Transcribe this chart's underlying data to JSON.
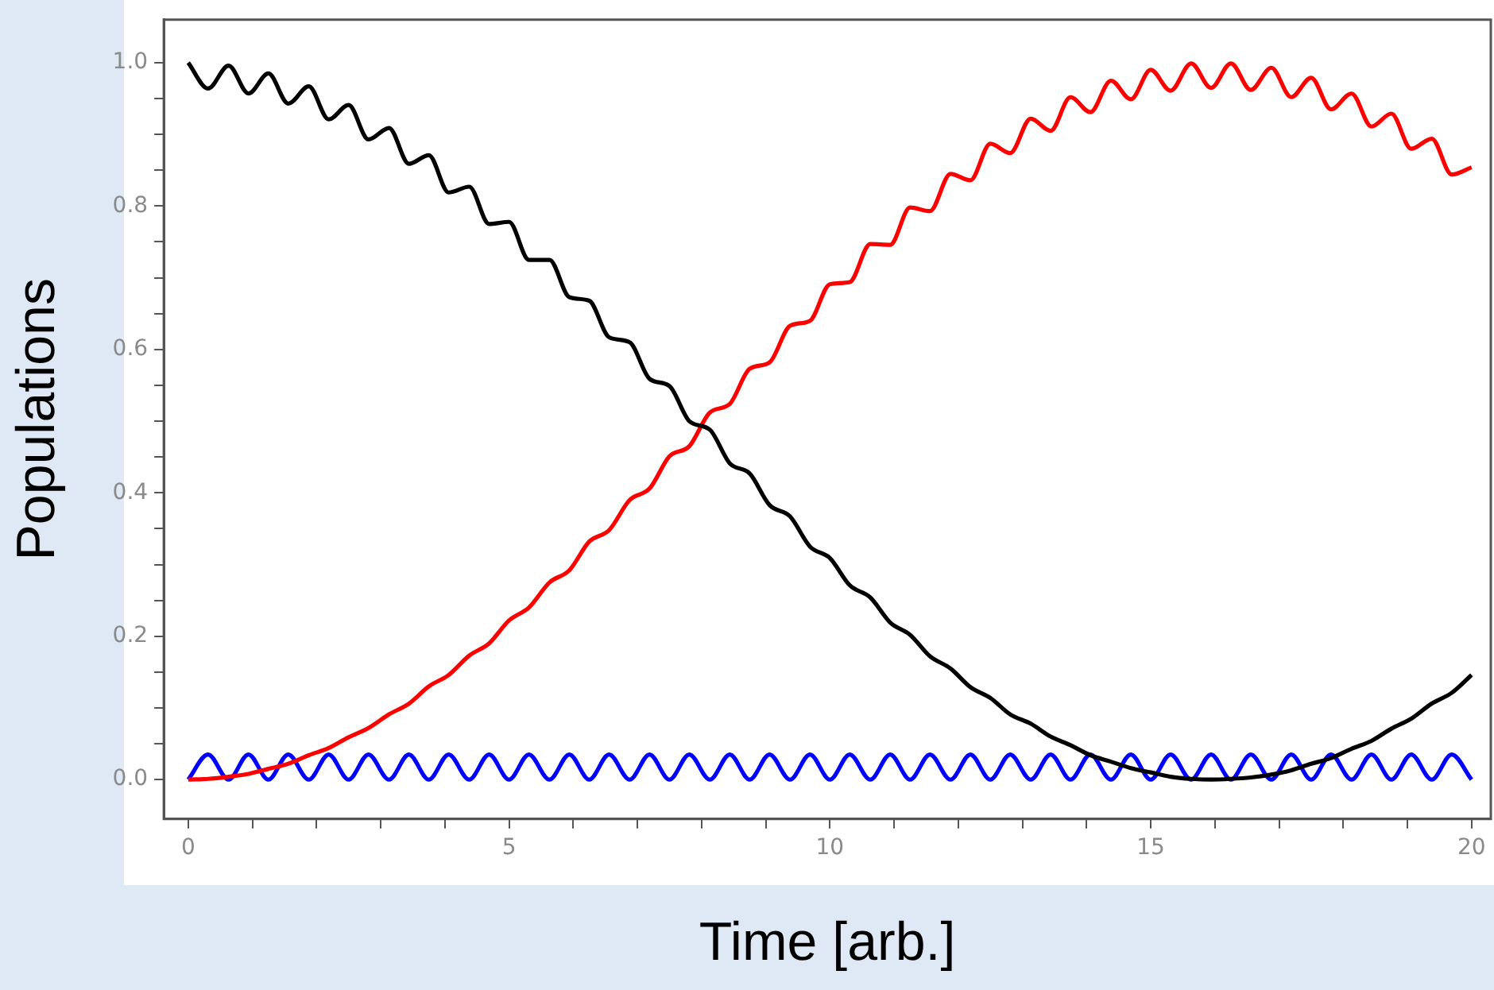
{
  "chart_data": {
    "type": "line",
    "xlabel": "Time [arb.]",
    "ylabel": "Populations",
    "marker": "none",
    "xlim": [
      -0.38,
      20.3
    ],
    "ylim": [
      -0.055,
      1.06
    ],
    "xticks": [
      0,
      {
        "value": 1,
        "label": null
      },
      {
        "value": 2,
        "label": null
      },
      {
        "value": 3,
        "label": null
      },
      {
        "value": 4,
        "label": null
      },
      5,
      {
        "value": 6,
        "label": null
      },
      {
        "value": 7,
        "label": null
      },
      {
        "value": 8,
        "label": null
      },
      {
        "value": 9,
        "label": null
      },
      10,
      {
        "value": 11,
        "label": null
      },
      {
        "value": 12,
        "label": null
      },
      {
        "value": 13,
        "label": null
      },
      {
        "value": 14,
        "label": null
      },
      15,
      {
        "value": 16,
        "label": null
      },
      {
        "value": 17,
        "label": null
      },
      {
        "value": 18,
        "label": null
      },
      {
        "value": 19,
        "label": null
      },
      20
    ],
    "yticks": [
      {
        "value": 0,
        "label": "0.0"
      },
      {
        "value": 0.05,
        "label": null
      },
      {
        "value": 0.1,
        "label": null
      },
      {
        "value": 0.15,
        "label": null
      },
      0.2,
      {
        "value": 0.25,
        "label": null
      },
      {
        "value": 0.3,
        "label": null
      },
      {
        "value": 0.35,
        "label": null
      },
      0.4,
      {
        "value": 0.45,
        "label": null
      },
      {
        "value": 0.5,
        "label": null
      },
      {
        "value": 0.55,
        "label": null
      },
      0.6,
      {
        "value": 0.65,
        "label": null
      },
      {
        "value": 0.7,
        "label": null
      },
      {
        "value": 0.75,
        "label": null
      },
      0.8,
      {
        "value": 0.85,
        "label": null
      },
      {
        "value": 0.9,
        "label": null
      },
      {
        "value": 0.95,
        "label": null
      },
      {
        "value": 1,
        "label": "1.0"
      }
    ],
    "x": [
      0,
      0.31,
      0.63,
      0.94,
      1.25,
      1.56,
      1.88,
      2.19,
      2.5,
      2.81,
      3.13,
      3.44,
      3.75,
      4.06,
      4.38,
      4.69,
      5,
      5.31,
      5.63,
      5.94,
      6.25,
      6.56,
      6.88,
      7.19,
      7.5,
      7.81,
      8.13,
      8.44,
      8.75,
      9.06,
      9.38,
      9.69,
      10,
      10.31,
      10.63,
      10.94,
      11.25,
      11.56,
      11.88,
      12.19,
      12.5,
      12.81,
      13.13,
      13.44,
      13.75,
      14.06,
      14.38,
      14.69,
      15,
      15.31,
      15.63,
      15.94,
      16.25,
      16.56,
      16.88,
      17.19,
      17.5,
      17.81,
      18.13,
      18.44,
      18.75,
      19.06,
      19.38,
      19.69,
      20
    ],
    "series": [
      {
        "color": "#000000",
        "values": [
          1.0,
          0.964,
          0.996,
          0.957,
          0.985,
          0.943,
          0.967,
          0.921,
          0.941,
          0.893,
          0.909,
          0.859,
          0.871,
          0.819,
          0.827,
          0.775,
          0.778,
          0.725,
          0.725,
          0.673,
          0.668,
          0.617,
          0.61,
          0.559,
          0.549,
          0.5,
          0.488,
          0.441,
          0.427,
          0.383,
          0.367,
          0.325,
          0.309,
          0.271,
          0.254,
          0.219,
          0.202,
          0.172,
          0.155,
          0.129,
          0.114,
          0.091,
          0.078,
          0.06,
          0.048,
          0.034,
          0.025,
          0.016,
          0.01,
          0.004,
          0.001,
          0.0,
          0.001,
          0.003,
          0.007,
          0.013,
          0.022,
          0.03,
          0.043,
          0.054,
          0.071,
          0.085,
          0.106,
          0.121,
          0.146
        ]
      },
      {
        "color": "#ff0000",
        "values": [
          0.0,
          0.001,
          0.004,
          0.008,
          0.015,
          0.022,
          0.034,
          0.044,
          0.059,
          0.072,
          0.091,
          0.106,
          0.13,
          0.146,
          0.173,
          0.19,
          0.222,
          0.24,
          0.275,
          0.292,
          0.332,
          0.348,
          0.39,
          0.406,
          0.451,
          0.465,
          0.512,
          0.524,
          0.573,
          0.582,
          0.633,
          0.64,
          0.691,
          0.694,
          0.747,
          0.746,
          0.798,
          0.793,
          0.845,
          0.836,
          0.887,
          0.874,
          0.922,
          0.905,
          0.952,
          0.931,
          0.975,
          0.949,
          0.99,
          0.961,
          0.999,
          0.965,
          0.999,
          0.962,
          0.993,
          0.952,
          0.979,
          0.935,
          0.957,
          0.911,
          0.929,
          0.88,
          0.894,
          0.844,
          0.854
        ]
      },
      {
        "color": "#0000ff",
        "values": [
          0,
          0.035,
          0,
          0.035,
          0,
          0.035,
          0,
          0.035,
          0,
          0.035,
          0,
          0.035,
          0,
          0.035,
          0,
          0.035,
          0,
          0.035,
          0,
          0.035,
          0,
          0.035,
          0,
          0.035,
          0,
          0.035,
          0,
          0.035,
          0,
          0.035,
          0,
          0.035,
          0,
          0.035,
          0,
          0.035,
          0,
          0.035,
          0,
          0.035,
          0,
          0.035,
          0,
          0.035,
          0,
          0.035,
          0,
          0.035,
          0,
          0.035,
          0,
          0.035,
          0,
          0.035,
          0,
          0.035,
          0,
          0.035,
          0,
          0.035,
          0,
          0.035,
          0,
          0.035,
          0
        ]
      }
    ]
  }
}
